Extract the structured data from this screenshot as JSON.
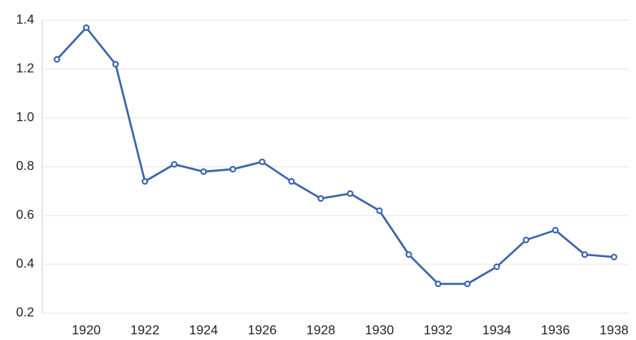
{
  "chart_data": {
    "type": "line",
    "x": [
      1919,
      1920,
      1921,
      1922,
      1923,
      1924,
      1925,
      1926,
      1927,
      1928,
      1929,
      1930,
      1931,
      1932,
      1933,
      1934,
      1935,
      1936,
      1937,
      1938
    ],
    "series": [
      {
        "color": "#3b65a9",
        "values": [
          1.24,
          1.37,
          1.22,
          0.74,
          0.81,
          0.78,
          0.79,
          0.82,
          0.74,
          0.67,
          0.69,
          0.62,
          0.44,
          0.32,
          0.32,
          0.39,
          0.5,
          0.54,
          0.44,
          0.43
        ]
      }
    ],
    "xlim": [
      1918.5,
      1938.5
    ],
    "xticks": [
      1920,
      1922,
      1924,
      1926,
      1928,
      1930,
      1932,
      1934,
      1936,
      1938
    ],
    "ylim": [
      0.2,
      1.4
    ],
    "yticks": [
      0.2,
      0.4,
      0.6,
      0.8,
      {
        "value": 1,
        "label": "1.0"
      },
      1.2,
      1.4
    ],
    "grid": true
  }
}
